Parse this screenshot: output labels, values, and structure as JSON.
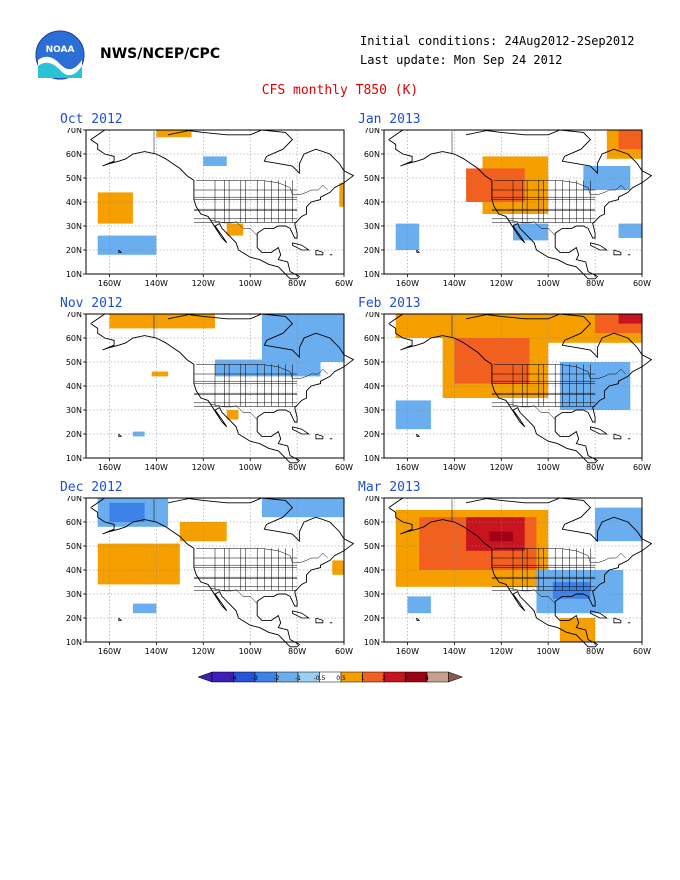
{
  "header": {
    "agency": "NWS/NCEP/CPC",
    "initial_conditions": "Initial conditions: 24Aug2012-2Sep2012",
    "last_update": "Last update: Mon Sep 24 2012",
    "title": "CFS monthly T850 (K)",
    "logo_text": "NOAA"
  },
  "axes": {
    "lat_labels": [
      "70N",
      "60N",
      "50N",
      "40N",
      "30N",
      "20N",
      "10N"
    ],
    "lon_labels": [
      "160W",
      "140W",
      "120W",
      "100W",
      "80W",
      "60W"
    ]
  },
  "colors": {
    "-4": "#3d1fb5",
    "-3": "#2a52d8",
    "-2": "#3d82e8",
    "-1": "#6aaef0",
    "-0.5": "#9ccff4",
    "0.5": "#ffffff",
    "1": "#f5a000",
    "2": "#f26020",
    "3": "#c8141e",
    "4": "#a00014",
    "5": "#c7a090",
    "6": "#8a5a50"
  },
  "colorbar": {
    "ticks": [
      "-4",
      "-3",
      "-2",
      "-1",
      "-0.5",
      "0.5",
      "1",
      "2",
      "3",
      "4"
    ]
  },
  "panels": [
    {
      "id": "oct2012",
      "title": "Oct 2012",
      "anomalies": [
        {
          "lon0": -165,
          "lon1": -150,
          "lat0": 31,
          "lat1": 44,
          "level": "1"
        },
        {
          "lon0": -140,
          "lon1": -125,
          "lat0": 67,
          "lat1": 70,
          "level": "1"
        },
        {
          "lon0": -165,
          "lon1": -140,
          "lat0": 18,
          "lat1": 26,
          "level": "-1"
        },
        {
          "lon0": -120,
          "lon1": -110,
          "lat0": 55,
          "lat1": 59,
          "level": "-1"
        },
        {
          "lon0": -110,
          "lon1": -103,
          "lat0": 26,
          "lat1": 31,
          "level": "1"
        },
        {
          "lon0": -62,
          "lon1": -60,
          "lat0": 38,
          "lat1": 48,
          "level": "1"
        }
      ]
    },
    {
      "id": "jan2013",
      "title": "Jan 2013",
      "anomalies": [
        {
          "lon0": -128,
          "lon1": -100,
          "lat0": 35,
          "lat1": 59,
          "level": "1"
        },
        {
          "lon0": -135,
          "lon1": -110,
          "lat0": 40,
          "lat1": 54,
          "level": "2"
        },
        {
          "lon0": -75,
          "lon1": -60,
          "lat0": 58,
          "lat1": 70,
          "level": "1"
        },
        {
          "lon0": -70,
          "lon1": -60,
          "lat0": 62,
          "lat1": 70,
          "level": "2"
        },
        {
          "lon0": -165,
          "lon1": -155,
          "lat0": 20,
          "lat1": 31,
          "level": "-1"
        },
        {
          "lon0": -115,
          "lon1": -100,
          "lat0": 24,
          "lat1": 31,
          "level": "-1"
        },
        {
          "lon0": -85,
          "lon1": -65,
          "lat0": 45,
          "lat1": 55,
          "level": "-1"
        },
        {
          "lon0": -70,
          "lon1": -60,
          "lat0": 25,
          "lat1": 31,
          "level": "-1"
        }
      ]
    },
    {
      "id": "nov2012",
      "title": "Nov 2012",
      "anomalies": [
        {
          "lon0": -160,
          "lon1": -115,
          "lat0": 64,
          "lat1": 70,
          "level": "1"
        },
        {
          "lon0": -95,
          "lon1": -60,
          "lat0": 50,
          "lat1": 70,
          "level": "-1"
        },
        {
          "lon0": -115,
          "lon1": -70,
          "lat0": 44,
          "lat1": 51,
          "level": "-1"
        },
        {
          "lon0": -142,
          "lon1": -135,
          "lat0": 44,
          "lat1": 46,
          "level": "1"
        },
        {
          "lon0": -110,
          "lon1": -105,
          "lat0": 26,
          "lat1": 30,
          "level": "1"
        },
        {
          "lon0": -150,
          "lon1": -145,
          "lat0": 19,
          "lat1": 21,
          "level": "-1"
        }
      ]
    },
    {
      "id": "feb2013",
      "title": "Feb 2013",
      "anomalies": [
        {
          "lon0": -165,
          "lon1": -95,
          "lat0": 60,
          "lat1": 70,
          "level": "1"
        },
        {
          "lon0": -145,
          "lon1": -100,
          "lat0": 35,
          "lat1": 60,
          "level": "1"
        },
        {
          "lon0": -140,
          "lon1": -108,
          "lat0": 41,
          "lat1": 60,
          "level": "2"
        },
        {
          "lon0": -100,
          "lon1": -60,
          "lat0": 58,
          "lat1": 70,
          "level": "1"
        },
        {
          "lon0": -80,
          "lon1": -60,
          "lat0": 62,
          "lat1": 70,
          "level": "2"
        },
        {
          "lon0": -70,
          "lon1": -60,
          "lat0": 66,
          "lat1": 70,
          "level": "3"
        },
        {
          "lon0": -95,
          "lon1": -65,
          "lat0": 30,
          "lat1": 50,
          "level": "-1"
        },
        {
          "lon0": -165,
          "lon1": -150,
          "lat0": 22,
          "lat1": 34,
          "level": "-1"
        }
      ]
    },
    {
      "id": "dec2012",
      "title": "Dec 2012",
      "anomalies": [
        {
          "lon0": -165,
          "lon1": -135,
          "lat0": 58,
          "lat1": 70,
          "level": "-1"
        },
        {
          "lon0": -160,
          "lon1": -145,
          "lat0": 60,
          "lat1": 68,
          "level": "-2"
        },
        {
          "lon0": -165,
          "lon1": -130,
          "lat0": 34,
          "lat1": 51,
          "level": "1"
        },
        {
          "lon0": -130,
          "lon1": -110,
          "lat0": 52,
          "lat1": 60,
          "level": "1"
        },
        {
          "lon0": -95,
          "lon1": -60,
          "lat0": 62,
          "lat1": 70,
          "level": "-1"
        },
        {
          "lon0": -150,
          "lon1": -140,
          "lat0": 22,
          "lat1": 26,
          "level": "-1"
        },
        {
          "lon0": -65,
          "lon1": -60,
          "lat0": 38,
          "lat1": 44,
          "level": "1"
        }
      ]
    },
    {
      "id": "mar2013",
      "title": "Mar 2013",
      "anomalies": [
        {
          "lon0": -165,
          "lon1": -100,
          "lat0": 33,
          "lat1": 65,
          "level": "1"
        },
        {
          "lon0": -155,
          "lon1": -105,
          "lat0": 40,
          "lat1": 62,
          "level": "2"
        },
        {
          "lon0": -135,
          "lon1": -110,
          "lat0": 48,
          "lat1": 62,
          "level": "3"
        },
        {
          "lon0": -125,
          "lon1": -115,
          "lat0": 52,
          "lat1": 56,
          "level": "4"
        },
        {
          "lon0": -105,
          "lon1": -68,
          "lat0": 22,
          "lat1": 40,
          "level": "-1"
        },
        {
          "lon0": -98,
          "lon1": -82,
          "lat0": 28,
          "lat1": 35,
          "level": "-2"
        },
        {
          "lon0": -80,
          "lon1": -60,
          "lat0": 52,
          "lat1": 66,
          "level": "-1"
        },
        {
          "lon0": -160,
          "lon1": -150,
          "lat0": 22,
          "lat1": 29,
          "level": "-1"
        },
        {
          "lon0": -95,
          "lon1": -80,
          "lat0": 10,
          "lat1": 20,
          "level": "1"
        }
      ]
    }
  ]
}
